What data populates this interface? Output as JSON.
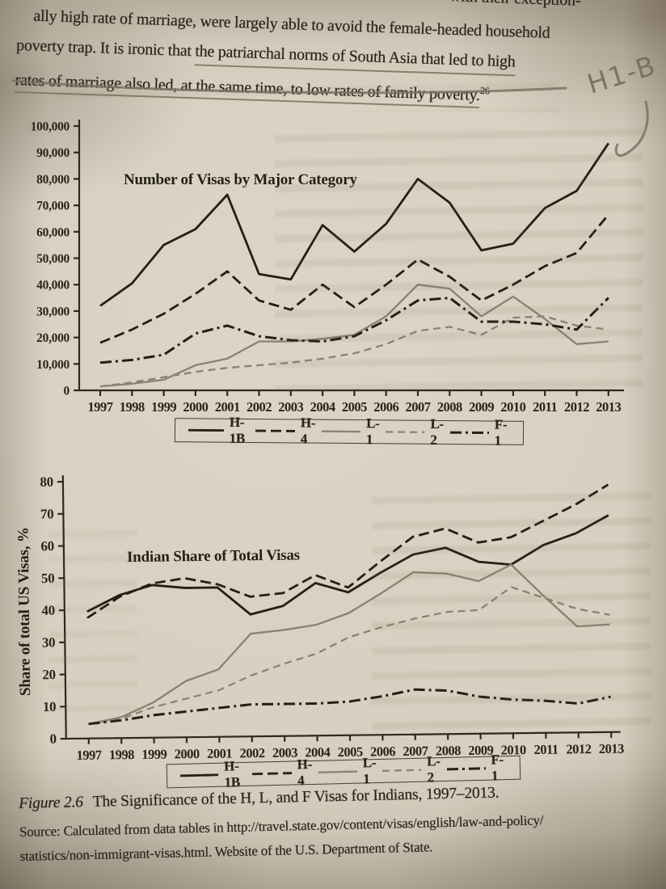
{
  "colors": {
    "paper": "#d7cfbf",
    "ink": "#241f17",
    "gray_line": "#8a8272",
    "pencil": "#7b7263"
  },
  "page_text": {
    "top_fragment": "with their exception-",
    "para_line1": "ally high rate of marriage, were largely able to avoid the female-headed household",
    "para_line2_start": "poverty trap. It is ironic that ",
    "para_line2_underlined": "the patriarchal norms of South Asia that led to high",
    "para_line3_underlined": "rates of marriage also led, at the same time, to low rates of family poverty.",
    "footnote_marker": "26",
    "handwritten_annotation": "H1-B"
  },
  "caption": {
    "figure_label": "Figure 2.6",
    "figure_title": "The Significance of the H, L, and F Visas for Indians, 1997–2013.",
    "source_line1": "Source: Calculated from data tables in http://travel.state.gov/content/visas/english/law-and-policy/",
    "source_line2": "statistics/non-immigrant-visas.html. Website of the U.S. Department of State."
  },
  "chart_data": [
    {
      "type": "line",
      "title": "Number of Visas by Major Category",
      "x": [
        1997,
        1998,
        1999,
        2000,
        2001,
        2002,
        2003,
        2004,
        2005,
        2006,
        2007,
        2008,
        2009,
        2010,
        2011,
        2012,
        2013
      ],
      "ylim": [
        0,
        100000
      ],
      "ytick_labels": [
        "0",
        "10,000",
        "20,000",
        "30,000",
        "40,000",
        "50,000",
        "60,000",
        "70,000",
        "80,000",
        "90,000",
        "100,000"
      ],
      "grid": false,
      "legend_position": "bottom",
      "series": [
        {
          "name": "H-1B",
          "style": "solid-black",
          "values": [
            32000,
            40500,
            55000,
            61000,
            74000,
            44000,
            42000,
            62500,
            52500,
            63000,
            80000,
            71000,
            53000,
            55500,
            69000,
            75500,
            93500
          ]
        },
        {
          "name": "H-4",
          "style": "dashed-black",
          "values": [
            18000,
            23000,
            29000,
            36500,
            45000,
            34000,
            30500,
            40000,
            31500,
            40000,
            49500,
            43000,
            34000,
            40000,
            47000,
            52000,
            66500
          ]
        },
        {
          "name": "L-1",
          "style": "solid-gray",
          "values": [
            1500,
            2500,
            4000,
            9500,
            12000,
            18500,
            18500,
            19500,
            21000,
            28000,
            40000,
            38500,
            28000,
            35500,
            27000,
            17500,
            18500
          ]
        },
        {
          "name": "L-2",
          "style": "dashed-gray",
          "values": [
            1500,
            3000,
            5000,
            7000,
            8500,
            9500,
            10500,
            12000,
            14000,
            17500,
            22500,
            24000,
            21000,
            27500,
            28000,
            24500,
            23000
          ]
        },
        {
          "name": "F-1",
          "style": "dashdot-black",
          "values": [
            10500,
            11500,
            13500,
            21500,
            24500,
            20500,
            19000,
            18500,
            20500,
            26500,
            34000,
            35000,
            26000,
            26000,
            25000,
            23000,
            35000
          ]
        }
      ]
    },
    {
      "type": "line",
      "title": "Indian Share of Total Visas",
      "ylabel": "Share of total US Visas, %",
      "x": [
        1997,
        1998,
        1999,
        2000,
        2001,
        2002,
        2003,
        2004,
        2005,
        2006,
        2007,
        2008,
        2009,
        2010,
        2011,
        2012,
        2013
      ],
      "ylim": [
        0,
        80
      ],
      "ytick_labels": [
        "0",
        "10",
        "20",
        "30",
        "40",
        "50",
        "60",
        "70",
        "80"
      ],
      "grid": false,
      "legend_position": "bottom",
      "series": [
        {
          "name": "H-1B",
          "style": "solid-black",
          "values": [
            39.5,
            44.5,
            47.5,
            46.5,
            46.5,
            38,
            40.5,
            47.5,
            44.5,
            50.5,
            56,
            58,
            53.5,
            52.5,
            58.5,
            62,
            67.5
          ]
        },
        {
          "name": "H-4",
          "style": "dashed-black",
          "values": [
            37.5,
            44,
            48,
            49.5,
            47.5,
            43.5,
            44.5,
            50,
            46,
            54,
            61.5,
            64,
            59.5,
            61,
            66,
            71,
            77
          ]
        },
        {
          "name": "L-1",
          "style": "solid-gray",
          "values": [
            4.5,
            6.5,
            11,
            17.5,
            21,
            32,
            33,
            34.5,
            38,
            44,
            50.5,
            50,
            47.5,
            52.5,
            42.5,
            33,
            33.5
          ]
        },
        {
          "name": "L-2",
          "style": "dashed-gray",
          "values": [
            4.5,
            6,
            9.5,
            12,
            14.5,
            19,
            22.5,
            25.5,
            30.5,
            33.5,
            36,
            38,
            38.5,
            45.5,
            42,
            38.5,
            36.5
          ]
        },
        {
          "name": "F-1",
          "style": "dashdot-black",
          "values": [
            4.5,
            5.5,
            7,
            8,
            9,
            10,
            10,
            10,
            10.5,
            12,
            14,
            13.5,
            11.5,
            10.5,
            10,
            9,
            11
          ]
        }
      ]
    }
  ]
}
